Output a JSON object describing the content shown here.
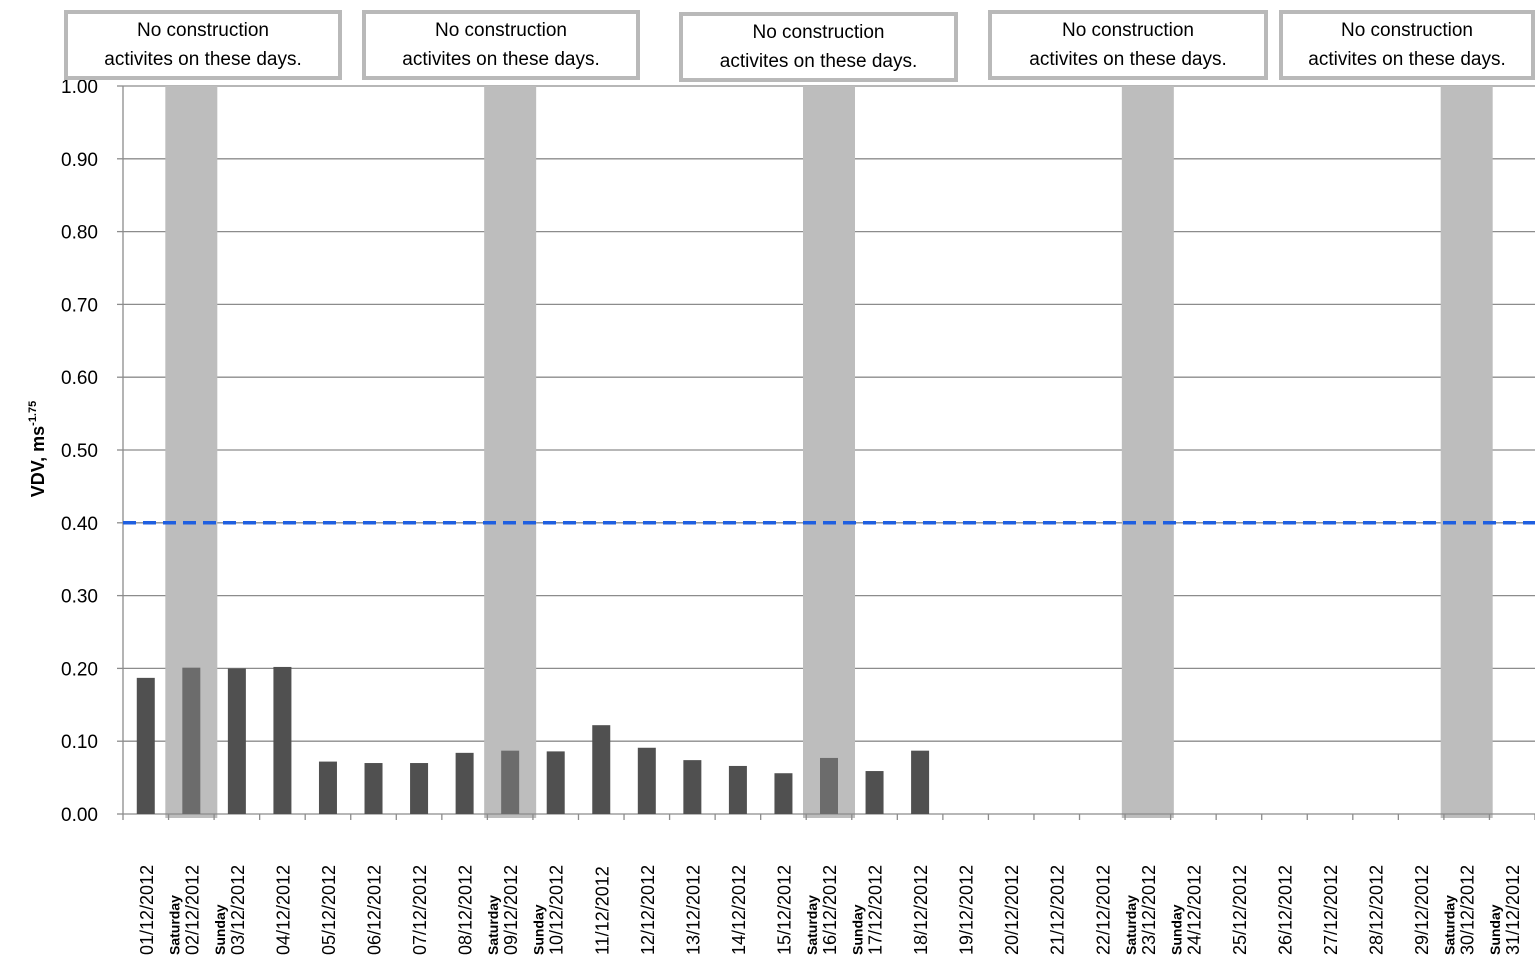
{
  "chart_data": {
    "type": "bar",
    "title": "",
    "xlabel": "",
    "ylabel": "VDV, ms",
    "ylabel_superscript": "-1.75",
    "ylim": [
      0,
      1.0
    ],
    "yticks": [
      "0.00",
      "0.10",
      "0.20",
      "0.30",
      "0.40",
      "0.50",
      "0.60",
      "0.70",
      "0.80",
      "0.90",
      "1.00"
    ],
    "grid": true,
    "categories": [
      "01/12/2012",
      "02/12/2012",
      "03/12/2012",
      "04/12/2012",
      "05/12/2012",
      "06/12/2012",
      "07/12/2012",
      "08/12/2012",
      "09/12/2012",
      "10/12/2012",
      "11/12/2012",
      "12/12/2012",
      "13/12/2012",
      "14/12/2012",
      "15/12/2012",
      "16/12/2012",
      "17/12/2012",
      "18/12/2012",
      "19/12/2012",
      "20/12/2012",
      "21/12/2012",
      "22/12/2012",
      "23/12/2012",
      "24/12/2012",
      "25/12/2012",
      "26/12/2012",
      "27/12/2012",
      "28/12/2012",
      "29/12/2012",
      "30/12/2012",
      "31/12/2012"
    ],
    "values": [
      0.187,
      0.201,
      0.2,
      0.202,
      0.072,
      0.07,
      0.07,
      0.084,
      0.087,
      0.086,
      0.122,
      0.091,
      0.074,
      0.066,
      0.056,
      0.077,
      0.059,
      0.087,
      null,
      null,
      null,
      null,
      null,
      null,
      null,
      null,
      null,
      null,
      null,
      null,
      null
    ],
    "weekend_labels": [
      {
        "date": "02/12/2012",
        "label": "Saturday"
      },
      {
        "date": "03/12/2012",
        "label": "Sunday"
      },
      {
        "date": "09/12/2012",
        "label": "Saturday"
      },
      {
        "date": "10/12/2012",
        "label": "Sunday"
      },
      {
        "date": "16/12/2012",
        "label": "Saturday"
      },
      {
        "date": "17/12/2012",
        "label": "Sunday"
      },
      {
        "date": "23/12/2012",
        "label": "Saturday"
      },
      {
        "date": "24/12/2012",
        "label": "Sunday"
      },
      {
        "date": "30/12/2012",
        "label": "Saturday"
      },
      {
        "date": "31/12/2012",
        "label": "Sunday"
      }
    ],
    "reference_line": {
      "value": 0.4,
      "style": "dashed",
      "color": "#1f5fe0"
    },
    "shaded_dates": [
      "02/12/2012",
      "09/12/2012",
      "16/12/2012",
      "23/12/2012",
      "30/12/2012"
    ],
    "annotations": [
      {
        "line1": "No construction",
        "line2": "activites on these days."
      },
      {
        "line1": "No construction",
        "line2": "activites on these days."
      },
      {
        "line1": "No construction",
        "line2": "activites on these days."
      },
      {
        "line1": "No construction",
        "line2": "activites on these days."
      },
      {
        "line1": "No construction",
        "line2": "activites on these days."
      }
    ],
    "colors": {
      "bar": "#505050",
      "bar_in_shade": "#6c6c6c",
      "shade": "#bdbdbd",
      "callout_border": "#b9b9b9",
      "gridline": "#8c8c8c"
    }
  }
}
